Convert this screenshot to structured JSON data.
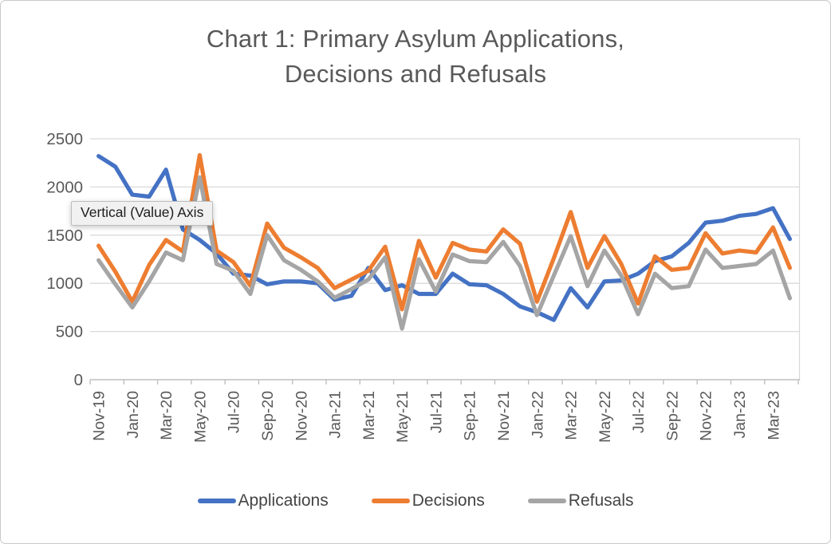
{
  "window": {
    "background": "#ffffff",
    "border_color": "#c9c9c9"
  },
  "chart_title": {
    "line1": "Chart 1: Primary Asylum Applications,",
    "line2": "Decisions and Refusals",
    "color": "#595959"
  },
  "tooltip": {
    "text": "Vertical (Value) Axis"
  },
  "legend": {
    "position": "bottom",
    "items": [
      {
        "label": "Applications",
        "color": "#4472C4"
      },
      {
        "label": "Decisions",
        "color": "#ED7D31"
      },
      {
        "label": "Refusals",
        "color": "#A5A5A5"
      }
    ]
  },
  "axis_style": {
    "label_color": "#595959",
    "gridline_color": "#D9D9D9",
    "axis_line_color": "#BFBFBF",
    "y_tick_labels": [
      "0",
      "500",
      "1000",
      "1500",
      "2000",
      "2500"
    ],
    "x_label_interval": 2
  },
  "chart_data": {
    "type": "line",
    "title": "Chart 1: Primary Asylum Applications, Decisions and Refusals",
    "xlabel": "",
    "ylabel": "",
    "ylim": [
      0,
      2500
    ],
    "y_ticks": [
      0,
      500,
      1000,
      1500,
      2000,
      2500
    ],
    "grid": true,
    "legend_position": "bottom",
    "categories": [
      "Nov-19",
      "Dec-19",
      "Jan-20",
      "Feb-20",
      "Mar-20",
      "Apr-20",
      "May-20",
      "Jun-20",
      "Jul-20",
      "Aug-20",
      "Sep-20",
      "Oct-20",
      "Nov-20",
      "Dec-20",
      "Jan-21",
      "Feb-21",
      "Mar-21",
      "Apr-21",
      "May-21",
      "Jun-21",
      "Jul-21",
      "Aug-21",
      "Sep-21",
      "Oct-21",
      "Nov-21",
      "Dec-21",
      "Jan-22",
      "Feb-22",
      "Mar-22",
      "Apr-22",
      "May-22",
      "Jun-22",
      "Jul-22",
      "Aug-22",
      "Sep-22",
      "Oct-22",
      "Nov-22",
      "Dec-22",
      "Jan-23",
      "Feb-23",
      "Mar-23",
      "Apr-23"
    ],
    "series": [
      {
        "name": "Applications",
        "color": "#4472C4",
        "values": [
          2320,
          2210,
          1920,
          1900,
          2180,
          1560,
          1450,
          1310,
          1100,
          1080,
          990,
          1020,
          1020,
          1000,
          830,
          870,
          1160,
          930,
          980,
          890,
          890,
          1100,
          990,
          980,
          890,
          760,
          700,
          620,
          950,
          750,
          1020,
          1030,
          1100,
          1230,
          1280,
          1420,
          1630,
          1650,
          1700,
          1720,
          1780,
          1460
        ]
      },
      {
        "name": "Decisions",
        "color": "#ED7D31",
        "values": [
          1390,
          1120,
          810,
          1190,
          1450,
          1330,
          2330,
          1340,
          1220,
          975,
          1620,
          1370,
          1270,
          1160,
          950,
          1040,
          1130,
          1380,
          730,
          1440,
          1060,
          1420,
          1350,
          1330,
          1560,
          1410,
          810,
          1260,
          1740,
          1160,
          1490,
          1200,
          790,
          1280,
          1140,
          1160,
          1520,
          1310,
          1340,
          1320,
          1580,
          1160
        ]
      },
      {
        "name": "Refusals",
        "color": "#A5A5A5",
        "values": [
          1240,
          990,
          750,
          1020,
          1320,
          1240,
          2100,
          1200,
          1130,
          890,
          1500,
          1240,
          1140,
          1020,
          850,
          940,
          1040,
          1270,
          530,
          1250,
          915,
          1300,
          1230,
          1220,
          1430,
          1180,
          670,
          1080,
          1490,
          970,
          1340,
          1080,
          680,
          1100,
          950,
          970,
          1350,
          1160,
          1180,
          1200,
          1340,
          845
        ]
      }
    ]
  }
}
